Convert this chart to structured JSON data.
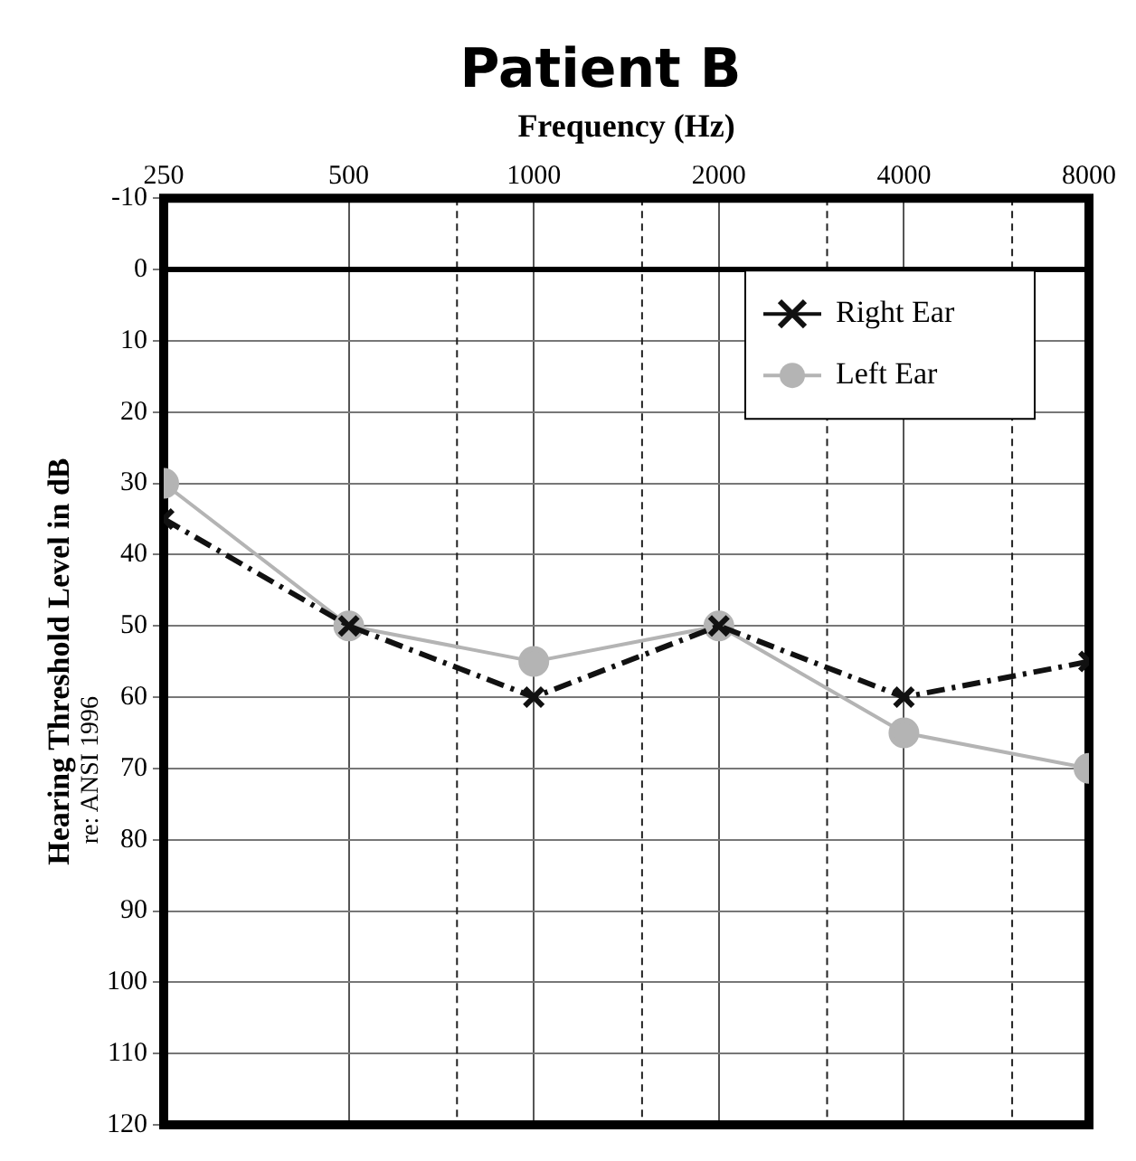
{
  "chart_data": {
    "type": "line",
    "title": "Patient B",
    "xlabel": "Frequency (Hz)",
    "ylabel": "Hearing Threshold Level in dB",
    "annotations": [
      "re: ANSI 1996"
    ],
    "x": [
      250,
      500,
      1000,
      2000,
      4000,
      8000
    ],
    "series": [
      {
        "name": "Right Ear",
        "color": "#111111",
        "values": [
          35,
          50,
          60,
          50,
          60,
          55
        ],
        "marker": "cross",
        "line_style": "dashed"
      },
      {
        "name": "Left Ear",
        "color": "#b4b4b4",
        "values": [
          30,
          50,
          55,
          50,
          65,
          70
        ],
        "marker": "circle",
        "line_style": "solid"
      }
    ],
    "log": "x",
    "xlim": [
      250,
      8000
    ],
    "xticks": [
      250,
      500,
      {
        "value": 750,
        "label": null
      },
      1000,
      {
        "value": 1500,
        "label": null
      },
      2000,
      {
        "value": 3000,
        "label": null
      },
      4000,
      {
        "value": 6000,
        "label": null
      },
      8000
    ],
    "ylim": [
      120,
      -10
    ],
    "yticks": [
      -10,
      0,
      10,
      20,
      30,
      40,
      50,
      60,
      70,
      80,
      90,
      100,
      110,
      120
    ],
    "ref_lines": [
      {
        "axis": "y",
        "value": 0,
        "color": "#000000"
      }
    ],
    "grid": true,
    "legend": "top right"
  }
}
